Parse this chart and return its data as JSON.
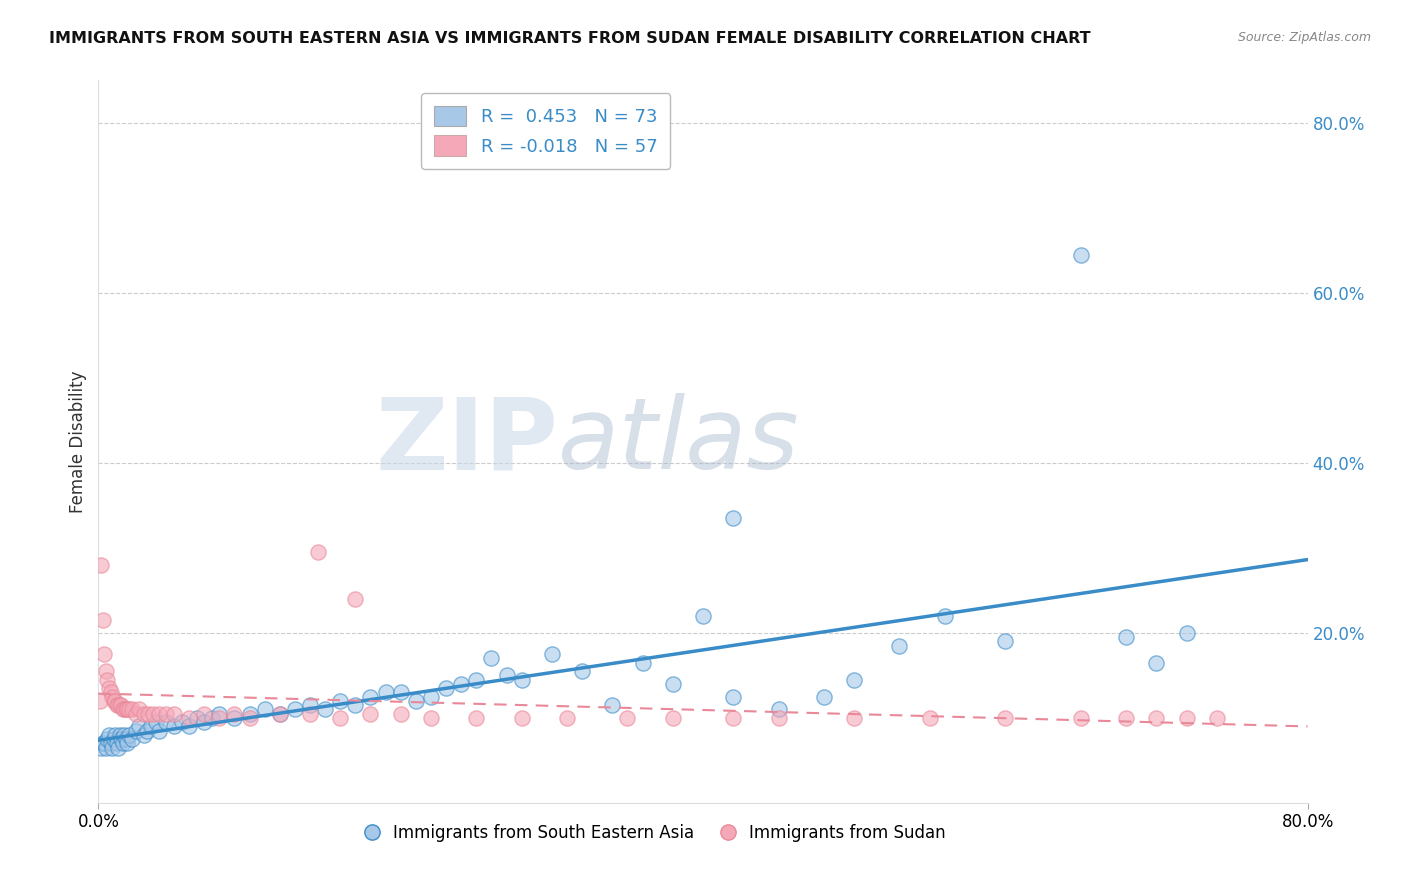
{
  "title": "IMMIGRANTS FROM SOUTH EASTERN ASIA VS IMMIGRANTS FROM SUDAN FEMALE DISABILITY CORRELATION CHART",
  "source": "Source: ZipAtlas.com",
  "xlabel_blue": "Immigrants from South Eastern Asia",
  "xlabel_pink": "Immigrants from Sudan",
  "ylabel": "Female Disability",
  "xlim": [
    0.0,
    0.8
  ],
  "ylim": [
    0.0,
    0.85
  ],
  "ytick_positions": [
    0.0,
    0.2,
    0.4,
    0.6,
    0.8
  ],
  "yticklabels": [
    "",
    "20.0%",
    "40.0%",
    "60.0%",
    "80.0%"
  ],
  "blue_R": 0.453,
  "blue_N": 73,
  "pink_R": -0.018,
  "pink_N": 57,
  "blue_color": "#a8c8e8",
  "pink_color": "#f4a8b8",
  "blue_line_color": "#3a8cc8",
  "pink_line_color": "#e88898",
  "legend_text_color": "#3a8cc8",
  "watermark_zip": "ZIP",
  "watermark_atlas": "atlas",
  "blue_scatter_x": [
    0.002,
    0.003,
    0.004,
    0.005,
    0.006,
    0.007,
    0.008,
    0.009,
    0.01,
    0.011,
    0.012,
    0.013,
    0.014,
    0.015,
    0.016,
    0.017,
    0.018,
    0.019,
    0.02,
    0.022,
    0.025,
    0.027,
    0.03,
    0.032,
    0.035,
    0.038,
    0.04,
    0.045,
    0.05,
    0.055,
    0.06,
    0.065,
    0.07,
    0.075,
    0.08,
    0.09,
    0.1,
    0.11,
    0.12,
    0.13,
    0.14,
    0.15,
    0.16,
    0.17,
    0.18,
    0.19,
    0.2,
    0.21,
    0.22,
    0.23,
    0.24,
    0.25,
    0.26,
    0.27,
    0.28,
    0.3,
    0.32,
    0.34,
    0.36,
    0.38,
    0.4,
    0.42,
    0.45,
    0.48,
    0.5,
    0.53,
    0.56,
    0.6,
    0.65,
    0.68,
    0.42,
    0.7,
    0.72
  ],
  "blue_scatter_y": [
    0.065,
    0.07,
    0.07,
    0.065,
    0.075,
    0.08,
    0.07,
    0.065,
    0.075,
    0.08,
    0.07,
    0.065,
    0.08,
    0.075,
    0.07,
    0.08,
    0.075,
    0.07,
    0.08,
    0.075,
    0.085,
    0.09,
    0.08,
    0.085,
    0.09,
    0.095,
    0.085,
    0.095,
    0.09,
    0.095,
    0.09,
    0.1,
    0.095,
    0.1,
    0.105,
    0.1,
    0.105,
    0.11,
    0.105,
    0.11,
    0.115,
    0.11,
    0.12,
    0.115,
    0.125,
    0.13,
    0.13,
    0.12,
    0.125,
    0.135,
    0.14,
    0.145,
    0.17,
    0.15,
    0.145,
    0.175,
    0.155,
    0.115,
    0.165,
    0.14,
    0.22,
    0.125,
    0.11,
    0.125,
    0.145,
    0.185,
    0.22,
    0.19,
    0.645,
    0.195,
    0.335,
    0.165,
    0.2
  ],
  "pink_scatter_x": [
    0.001,
    0.002,
    0.003,
    0.004,
    0.005,
    0.006,
    0.007,
    0.008,
    0.009,
    0.01,
    0.011,
    0.012,
    0.013,
    0.014,
    0.015,
    0.016,
    0.017,
    0.018,
    0.019,
    0.02,
    0.022,
    0.025,
    0.027,
    0.03,
    0.033,
    0.036,
    0.04,
    0.045,
    0.05,
    0.06,
    0.07,
    0.08,
    0.09,
    0.1,
    0.12,
    0.14,
    0.16,
    0.18,
    0.2,
    0.22,
    0.25,
    0.28,
    0.31,
    0.35,
    0.38,
    0.42,
    0.45,
    0.5,
    0.55,
    0.6,
    0.65,
    0.68,
    0.7,
    0.72,
    0.74,
    0.145,
    0.17
  ],
  "pink_scatter_y": [
    0.12,
    0.28,
    0.215,
    0.175,
    0.155,
    0.145,
    0.135,
    0.13,
    0.125,
    0.12,
    0.12,
    0.115,
    0.115,
    0.115,
    0.115,
    0.11,
    0.11,
    0.11,
    0.11,
    0.11,
    0.11,
    0.105,
    0.11,
    0.105,
    0.105,
    0.105,
    0.105,
    0.105,
    0.105,
    0.1,
    0.105,
    0.1,
    0.105,
    0.1,
    0.105,
    0.105,
    0.1,
    0.105,
    0.105,
    0.1,
    0.1,
    0.1,
    0.1,
    0.1,
    0.1,
    0.1,
    0.1,
    0.1,
    0.1,
    0.1,
    0.1,
    0.1,
    0.1,
    0.1,
    0.1,
    0.295,
    0.24
  ]
}
